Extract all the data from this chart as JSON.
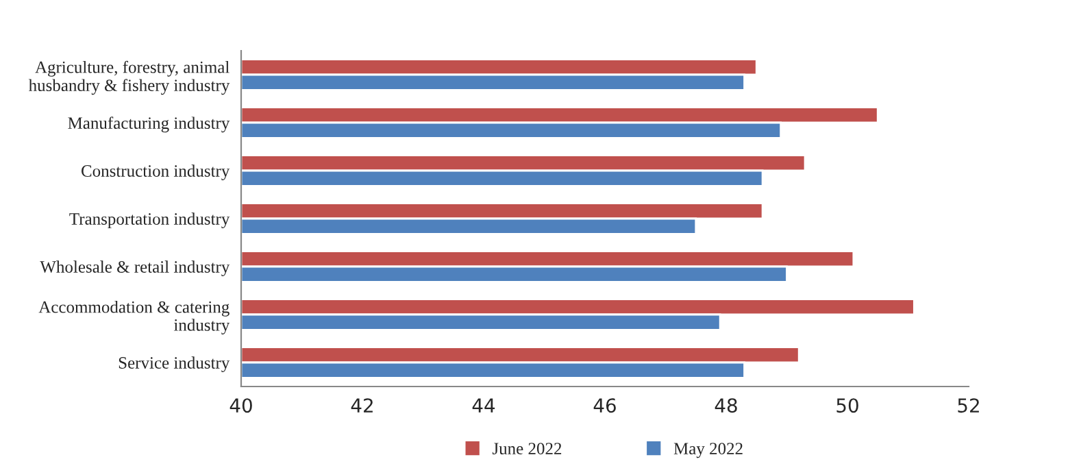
{
  "chart_data": {
    "type": "bar",
    "orientation": "horizontal",
    "categories": [
      "Agriculture, forestry, animal\nhusbandry & fishery industry",
      "Manufacturing industry",
      "Construction industry",
      "Transportation industry",
      "Wholesale & retail industry",
      "Accommodation & catering\nindustry",
      "Service industry"
    ],
    "series": [
      {
        "name": "June 2022",
        "color": "#c0504d",
        "values": [
          48.5,
          50.5,
          49.3,
          48.6,
          50.1,
          51.1,
          49.2
        ]
      },
      {
        "name": "May 2022",
        "color": "#4f81bd",
        "values": [
          48.3,
          48.9,
          48.6,
          47.5,
          49.0,
          47.9,
          48.3
        ]
      }
    ],
    "xlim": [
      40,
      52
    ],
    "xticks": [
      40,
      42,
      44,
      46,
      48,
      50,
      52
    ],
    "grid": false,
    "legend": "bottom"
  }
}
